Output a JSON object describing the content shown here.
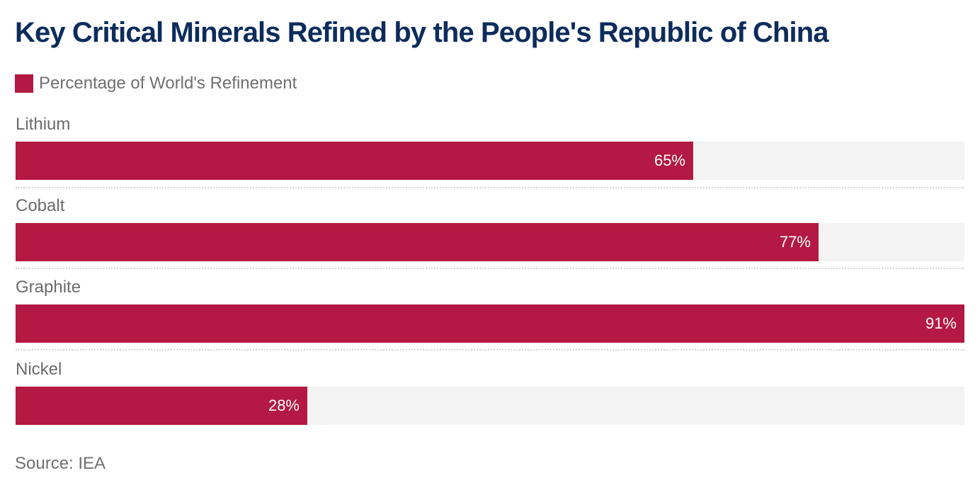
{
  "chart_data": {
    "type": "bar",
    "orientation": "horizontal",
    "title": "Key Critical Minerals Refined by the People's Republic of China",
    "legend": {
      "placement": "top-left",
      "entries": [
        "Percentage of World's Refinement"
      ]
    },
    "categories": [
      "Lithium",
      "Cobalt",
      "Graphite",
      "Nickel"
    ],
    "series": [
      {
        "name": "Percentage of World's Refinement",
        "values": [
          65,
          77,
          91,
          28
        ],
        "labels": [
          "65%",
          "77%",
          "91%",
          "28%"
        ],
        "color": "#b31942"
      }
    ],
    "xlim": [
      0,
      91
    ],
    "track_color": "#f3f3f3",
    "grid": false,
    "source": "Source: IEA"
  }
}
